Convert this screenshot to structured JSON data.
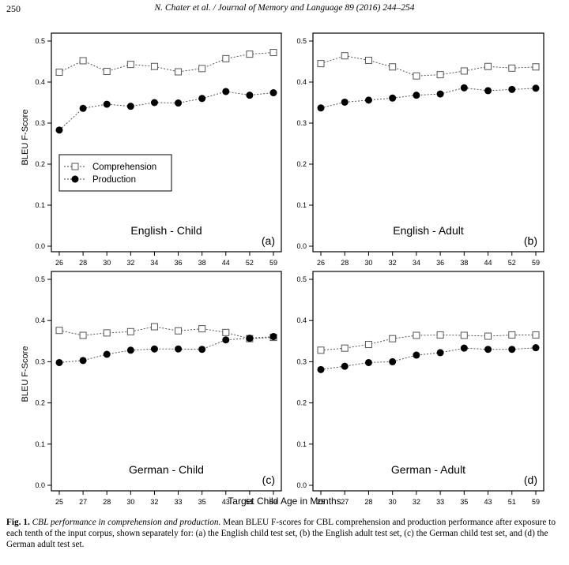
{
  "header": {
    "page_number": "250",
    "journal_ref": "N. Chater et al. / Journal of Memory and Language 89 (2016) 244–254"
  },
  "figure": {
    "y_axis_label": "BLEU F-Score",
    "x_axis_label": "Target Child Age in Months",
    "legend": [
      "Comprehension",
      "Production"
    ]
  },
  "caption": {
    "label": "Fig. 1.",
    "title": "CBL performance in comprehension and production.",
    "text": "Mean BLEU F-scores for CBL comprehension and production performance after exposure to each tenth of the input corpus, shown separately for: (a) the English child test set, (b) the English adult test set, (c) the German child test set, and (d) the German adult test set."
  },
  "chart_data": [
    {
      "type": "line",
      "title": "English - Child",
      "panel_label": "(a)",
      "categories": [
        "26",
        "28",
        "30",
        "32",
        "34",
        "36",
        "38",
        "44",
        "52",
        "59"
      ],
      "ylim": [
        0,
        0.5
      ],
      "yticks": [
        "0.0",
        "0.1",
        "0.2",
        "0.3",
        "0.4",
        "0.5"
      ],
      "legend": "middle-left",
      "series": [
        {
          "name": "Comprehension",
          "marker": "open-square",
          "values": [
            0.424,
            0.452,
            0.426,
            0.443,
            0.438,
            0.425,
            0.433,
            0.457,
            0.468,
            0.472
          ]
        },
        {
          "name": "Production",
          "marker": "filled-circle",
          "values": [
            0.283,
            0.336,
            0.346,
            0.341,
            0.35,
            0.349,
            0.36,
            0.377,
            0.368,
            0.374
          ]
        }
      ]
    },
    {
      "type": "line",
      "title": "English - Adult",
      "panel_label": "(b)",
      "categories": [
        "26",
        "28",
        "30",
        "32",
        "34",
        "36",
        "38",
        "44",
        "52",
        "59"
      ],
      "ylim": [
        0,
        0.5
      ],
      "yticks": [
        "0.0",
        "0.1",
        "0.2",
        "0.3",
        "0.4",
        "0.5"
      ],
      "series": [
        {
          "name": "Comprehension",
          "marker": "open-square",
          "values": [
            0.445,
            0.464,
            0.453,
            0.437,
            0.415,
            0.418,
            0.427,
            0.438,
            0.434,
            0.437
          ]
        },
        {
          "name": "Production",
          "marker": "filled-circle",
          "values": [
            0.337,
            0.351,
            0.356,
            0.361,
            0.368,
            0.371,
            0.386,
            0.379,
            0.382,
            0.385
          ]
        }
      ]
    },
    {
      "type": "line",
      "title": "German - Child",
      "panel_label": "(c)",
      "categories": [
        "25",
        "27",
        "28",
        "30",
        "32",
        "33",
        "35",
        "43",
        "51",
        "59"
      ],
      "ylim": [
        0,
        0.5
      ],
      "yticks": [
        "0.0",
        "0.1",
        "0.2",
        "0.3",
        "0.4",
        "0.5"
      ],
      "series": [
        {
          "name": "Comprehension",
          "marker": "open-square",
          "values": [
            0.376,
            0.364,
            0.37,
            0.373,
            0.385,
            0.375,
            0.38,
            0.371,
            0.356,
            0.359
          ]
        },
        {
          "name": "Production",
          "marker": "filled-circle",
          "values": [
            0.298,
            0.303,
            0.318,
            0.328,
            0.331,
            0.331,
            0.33,
            0.353,
            0.357,
            0.361
          ]
        }
      ]
    },
    {
      "type": "line",
      "title": "German - Adult",
      "panel_label": "(d)",
      "categories": [
        "25",
        "27",
        "28",
        "30",
        "32",
        "33",
        "35",
        "43",
        "51",
        "59"
      ],
      "ylim": [
        0,
        0.5
      ],
      "yticks": [
        "0.0",
        "0.1",
        "0.2",
        "0.3",
        "0.4",
        "0.5"
      ],
      "series": [
        {
          "name": "Comprehension",
          "marker": "open-square",
          "values": [
            0.328,
            0.333,
            0.342,
            0.356,
            0.364,
            0.365,
            0.364,
            0.362,
            0.365,
            0.365
          ]
        },
        {
          "name": "Production",
          "marker": "filled-circle",
          "values": [
            0.281,
            0.289,
            0.298,
            0.3,
            0.316,
            0.322,
            0.333,
            0.33,
            0.33,
            0.334
          ]
        }
      ]
    }
  ]
}
